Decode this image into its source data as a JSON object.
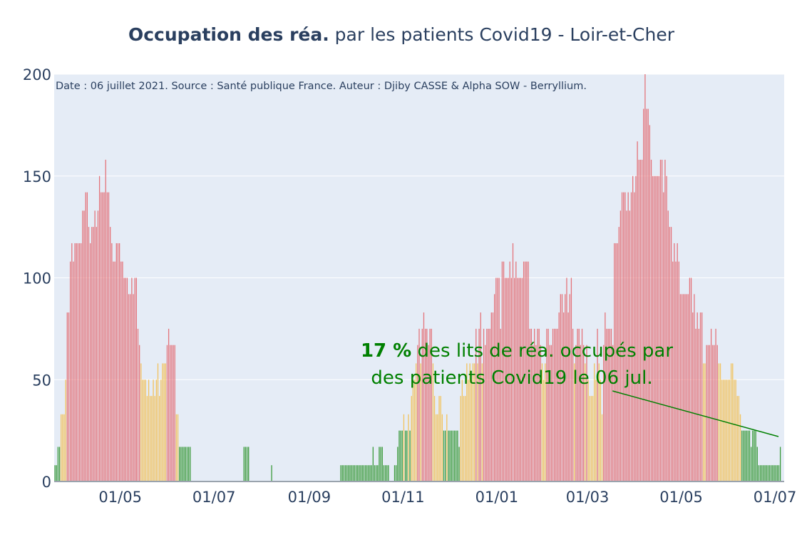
{
  "chart_data": {
    "type": "bar",
    "title_bold": "Occupation des réa.",
    "title_rest": " par les patients Covid19 - Loir-et-Cher",
    "source_note": "Date : 06 juillet 2021. Source : Santé publique France. Auteur : Djiby CASSE & Alpha SOW - Berryllium.",
    "ylim": [
      0,
      200
    ],
    "y_ticks": [
      "0",
      "50",
      "100",
      "150",
      "200"
    ],
    "x_ticks": [
      "01/05",
      "01/07",
      "01/09",
      "01/11",
      "01/01",
      "01/03",
      "01/05",
      "01/07"
    ],
    "x_tick_dates": [
      "2020-05-01",
      "2020-07-01",
      "2020-09-01",
      "2020-11-01",
      "2021-01-01",
      "2021-03-01",
      "2021-05-01",
      "2021-07-01"
    ],
    "x_range": [
      "2020-03-19",
      "2021-07-07"
    ],
    "thresholds": [
      30,
      60
    ],
    "colors": {
      "low": "#3a9a3a",
      "medium": "#f2c25c",
      "high": "#e4737a",
      "grid": "#ffffff",
      "plot_bg": "#e5ecf6",
      "annotation": "#008000"
    },
    "annotation": {
      "value_text": "17  %",
      "line1_rest": " des lits de réa. occupés par",
      "line2": "des patients Covid19 le 06 jul."
    },
    "series_segments": [
      {
        "start": "2020-03-19",
        "values": [
          8,
          8,
          17,
          17,
          33,
          33,
          33,
          50,
          83,
          83,
          108,
          117,
          108,
          117,
          117,
          117,
          117,
          117,
          133,
          133,
          142,
          142,
          125,
          117,
          125,
          125,
          133,
          125,
          133,
          150,
          142,
          142,
          142,
          158,
          142,
          142,
          125,
          117,
          108,
          108,
          117,
          117,
          117,
          108,
          108,
          100,
          100,
          100,
          92,
          92,
          100,
          92,
          100,
          100
        ]
      },
      {
        "start": "2020-05-11",
        "values": [
          75,
          75,
          67,
          58,
          50,
          50,
          50,
          42,
          50,
          42,
          42,
          50,
          42,
          50,
          58,
          42,
          50,
          58,
          58,
          58,
          67,
          75,
          67,
          67,
          67,
          67,
          33,
          33,
          17,
          17,
          17,
          17,
          17,
          17,
          17,
          17
        ]
      },
      {
        "start": "2020-07-20",
        "values": [
          17,
          17,
          17,
          17
        ]
      },
      {
        "start": "2020-08-07",
        "values": [
          8
        ]
      },
      {
        "start": "2020-09-21",
        "values": [
          8,
          8,
          8,
          8,
          8,
          8,
          8,
          8,
          8,
          8,
          8,
          8,
          8,
          8,
          8,
          8,
          8,
          8,
          8,
          8,
          8,
          17,
          8,
          8,
          8,
          17,
          17,
          17,
          8,
          8,
          8,
          8
        ]
      },
      {
        "start": "2020-10-26",
        "values": [
          8,
          8,
          17,
          25,
          25,
          25,
          33,
          25,
          25,
          33,
          25
        ]
      },
      {
        "start": "2020-11-06",
        "values": [
          42,
          50,
          50,
          58,
          67,
          75,
          58,
          75,
          83,
          75,
          75,
          67,
          75,
          75,
          58,
          42,
          33,
          33,
          42,
          42,
          33,
          25,
          25,
          33,
          25,
          25,
          25,
          25,
          25,
          25,
          25,
          17
        ]
      },
      {
        "start": "2020-12-08",
        "values": [
          42,
          50,
          42,
          42,
          58,
          50,
          58,
          50,
          58,
          58,
          75,
          58,
          75,
          83,
          58,
          75,
          67,
          75,
          75,
          75
        ]
      },
      {
        "start": "2020-12-28",
        "values": [
          83,
          83,
          92,
          100,
          100,
          100,
          75,
          108,
          108,
          100,
          100,
          100,
          108,
          100,
          117,
          100,
          108,
          100,
          100,
          100,
          100,
          108,
          108,
          108,
          108
        ]
      },
      {
        "start": "2021-01-22",
        "values": [
          75,
          75,
          67,
          75,
          67,
          75,
          75,
          67,
          58,
          50,
          58,
          75,
          75,
          67,
          67,
          75,
          75,
          75,
          75
        ]
      },
      {
        "start": "2021-02-10",
        "values": [
          83,
          92,
          92,
          83,
          92,
          100,
          83,
          92,
          100,
          75
        ]
      },
      {
        "start": "2021-02-20",
        "values": [
          58,
          67,
          75,
          75,
          67,
          75,
          67,
          58,
          67,
          50,
          42,
          42,
          42,
          58,
          50,
          75,
          58,
          50,
          33
        ]
      },
      {
        "start": "2021-03-11",
        "values": [
          67,
          83,
          75,
          75,
          75,
          75,
          67
        ]
      },
      {
        "start": "2021-03-18",
        "values": [
          117,
          117,
          117,
          125,
          133,
          142,
          142,
          142,
          133,
          142,
          133,
          142,
          150,
          142,
          150,
          167,
          158,
          158,
          158,
          183,
          200,
          183,
          183,
          175,
          158,
          150,
          150,
          150,
          150,
          150,
          158,
          158,
          142,
          158,
          150,
          133,
          125,
          125,
          108,
          117,
          108,
          117,
          108,
          92,
          92,
          92,
          92,
          92,
          92,
          100,
          100,
          83,
          92,
          75,
          83,
          75,
          83,
          83
        ]
      },
      {
        "start": "2021-05-15",
        "values": [
          58,
          58,
          67,
          67,
          67,
          75,
          67,
          67,
          75,
          67,
          58,
          58,
          50,
          50,
          50,
          50,
          50,
          50,
          58,
          58,
          50,
          50,
          42,
          42
        ]
      },
      {
        "start": "2021-06-08",
        "values": [
          33,
          25,
          25,
          25,
          25,
          25,
          25,
          17,
          25,
          25,
          25,
          17,
          8,
          8,
          8,
          8,
          8,
          8,
          8,
          8,
          8,
          8,
          8,
          8,
          8,
          8,
          17
        ]
      }
    ]
  }
}
